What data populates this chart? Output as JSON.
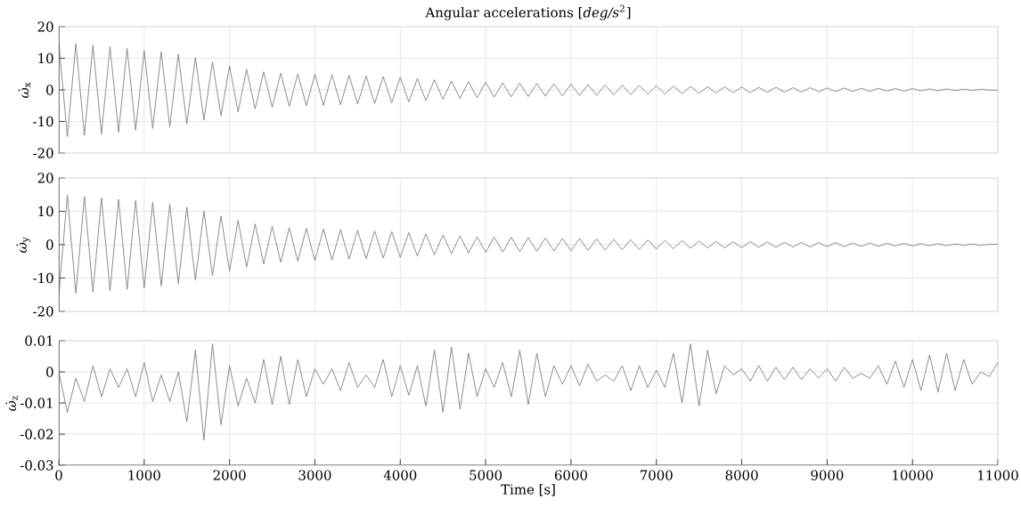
{
  "chart_data": [
    {
      "type": "line",
      "title": "Angular accelerations [*deg/s*$^{2}$]",
      "ylabel": "*ω̇*$_{x}$",
      "tick_labels": "y",
      "grid": true,
      "marker": "none",
      "line_style": "solid",
      "xlim": [
        0,
        11000
      ],
      "xticks": [
        0,
        1000,
        2000,
        3000,
        4000,
        5000,
        6000,
        7000,
        8000,
        9000,
        10000,
        11000
      ],
      "ylim": [
        -20,
        20
      ],
      "yticks": [
        -20,
        -10,
        0,
        10,
        20
      ],
      "series": [
        {
          "color": "#808080",
          "x": [
            0,
            100,
            200,
            300,
            400,
            500,
            600,
            700,
            800,
            900,
            1000,
            1100,
            1200,
            1300,
            1400,
            1500,
            1600,
            1700,
            1800,
            1900,
            2000,
            2100,
            2200,
            2300,
            2400,
            2500,
            2600,
            2700,
            2800,
            2900,
            3000,
            3100,
            3200,
            3300,
            3400,
            3500,
            3600,
            3700,
            3800,
            3900,
            4000,
            4100,
            4200,
            4300,
            4400,
            4500,
            4600,
            4700,
            4800,
            4900,
            5000,
            5100,
            5200,
            5300,
            5400,
            5500,
            5600,
            5700,
            5800,
            5900,
            6000,
            6100,
            6200,
            6300,
            6400,
            6500,
            6600,
            6700,
            6800,
            6900,
            7000,
            7100,
            7200,
            7300,
            7400,
            7500,
            7600,
            7700,
            7800,
            7900,
            8000,
            8100,
            8200,
            8300,
            8400,
            8500,
            8600,
            8700,
            8800,
            8900,
            9000,
            9100,
            9200,
            9300,
            9400,
            9500,
            9600,
            9700,
            9800,
            9900,
            10000,
            10100,
            10200,
            10300,
            10400,
            10500,
            10600,
            10700,
            10800,
            10900,
            11000
          ],
          "values": [
            15,
            -14.8,
            14.6,
            -14.4,
            14.2,
            -14,
            13.7,
            -13.4,
            13.1,
            -12.8,
            12.5,
            -12.2,
            12,
            -11.7,
            11.3,
            -10.8,
            10.2,
            -9.5,
            8.8,
            -8.2,
            7.6,
            -7,
            6.5,
            -6,
            5.7,
            -5.5,
            5.3,
            -5.2,
            5.1,
            -5,
            5,
            -4.9,
            4.8,
            -4.7,
            4.6,
            -4.5,
            4.4,
            -4.3,
            4.2,
            -4.1,
            4,
            -3.8,
            3.6,
            -3.4,
            3.2,
            -3,
            2.8,
            -2.7,
            2.6,
            -2.5,
            2.4,
            -2.3,
            2.2,
            -2.2,
            2.1,
            -2.1,
            2,
            -2,
            1.9,
            -1.9,
            1.8,
            -1.8,
            1.7,
            -1.7,
            1.6,
            -1.6,
            1.5,
            -1.5,
            1.4,
            -1.4,
            1.3,
            -1.3,
            1.2,
            -1.2,
            1.1,
            -1.1,
            1,
            -1,
            1,
            -0.9,
            0.9,
            -0.9,
            0.8,
            -0.8,
            0.8,
            -0.7,
            0.7,
            -0.7,
            0.7,
            -0.6,
            0.6,
            -0.6,
            0.6,
            -0.5,
            0.5,
            -0.5,
            0.5,
            -0.4,
            0.4,
            -0.4,
            0.4,
            -0.3,
            0.3,
            -0.3,
            0.3,
            -0.2,
            0.2,
            -0.2,
            0.2,
            -0.1,
            -0.1
          ]
        }
      ]
    },
    {
      "type": "line",
      "ylabel": "*ω̇*$_{y}$",
      "tick_labels": "y",
      "grid": true,
      "marker": "none",
      "line_style": "solid",
      "xlim": [
        0,
        11000
      ],
      "xticks": [
        0,
        1000,
        2000,
        3000,
        4000,
        5000,
        6000,
        7000,
        8000,
        9000,
        10000,
        11000
      ],
      "ylim": [
        -20,
        20
      ],
      "yticks": [
        -20,
        -10,
        0,
        10,
        20
      ],
      "series": [
        {
          "color": "#808080",
          "x": [
            0,
            100,
            200,
            300,
            400,
            500,
            600,
            700,
            800,
            900,
            1000,
            1100,
            1200,
            1300,
            1400,
            1500,
            1600,
            1700,
            1800,
            1900,
            2000,
            2100,
            2200,
            2300,
            2400,
            2500,
            2600,
            2700,
            2800,
            2900,
            3000,
            3100,
            3200,
            3300,
            3400,
            3500,
            3600,
            3700,
            3800,
            3900,
            4000,
            4100,
            4200,
            4300,
            4400,
            4500,
            4600,
            4700,
            4800,
            4900,
            5000,
            5100,
            5200,
            5300,
            5400,
            5500,
            5600,
            5700,
            5800,
            5900,
            6000,
            6100,
            6200,
            6300,
            6400,
            6500,
            6600,
            6700,
            6800,
            6900,
            7000,
            7100,
            7200,
            7300,
            7400,
            7500,
            7600,
            7700,
            7800,
            7900,
            8000,
            8100,
            8200,
            8300,
            8400,
            8500,
            8600,
            8700,
            8800,
            8900,
            9000,
            9100,
            9200,
            9300,
            9400,
            9500,
            9600,
            9700,
            9800,
            9900,
            10000,
            10100,
            10200,
            10300,
            10400,
            10500,
            10600,
            10700,
            10800,
            10900,
            11000
          ],
          "values": [
            -15,
            14.8,
            -14.6,
            14.4,
            -14.2,
            14,
            -13.8,
            13.6,
            -13.4,
            13.2,
            -13,
            12.7,
            -12.4,
            12.1,
            -11.7,
            11.2,
            -10.6,
            10,
            -9.3,
            8.6,
            -7.9,
            7.3,
            -6.7,
            6.2,
            -5.8,
            5.5,
            -5.3,
            5.1,
            -5,
            4.9,
            -4.8,
            4.7,
            -4.6,
            4.5,
            -4.4,
            4.3,
            -4.2,
            4.1,
            -4,
            3.9,
            -3.8,
            3.6,
            -3.4,
            3.2,
            -3,
            2.9,
            -2.7,
            2.6,
            -2.5,
            2.4,
            -2.3,
            2.3,
            -2.2,
            2.2,
            -2.1,
            2.1,
            -2,
            2,
            -1.9,
            1.9,
            -1.8,
            1.8,
            -1.7,
            1.7,
            -1.6,
            1.6,
            -1.5,
            1.5,
            -1.4,
            1.4,
            -1.3,
            1.3,
            -1.2,
            1.2,
            -1.1,
            1.1,
            -1,
            1,
            -1,
            0.9,
            -0.9,
            0.9,
            -0.8,
            0.8,
            -0.8,
            0.7,
            -0.7,
            0.7,
            -0.7,
            0.6,
            -0.6,
            0.6,
            -0.6,
            0.5,
            -0.5,
            0.5,
            -0.5,
            0.4,
            -0.4,
            0.4,
            -0.4,
            0.3,
            -0.3,
            0.3,
            -0.3,
            0.2,
            -0.2,
            0.2,
            -0.2,
            0.1,
            0.1
          ]
        }
      ]
    },
    {
      "type": "line",
      "xlabel": "Time [s]",
      "ylabel": "*ω̇*$_{z}$",
      "grid": true,
      "marker": "none",
      "line_style": "solid",
      "xlim": [
        0,
        11000
      ],
      "xticks": [
        0,
        1000,
        2000,
        3000,
        4000,
        5000,
        6000,
        7000,
        8000,
        9000,
        10000,
        11000
      ],
      "ylim": [
        -0.03,
        0.01
      ],
      "yticks": [
        -0.03,
        -0.02,
        -0.01,
        0,
        0.01
      ],
      "series": [
        {
          "color": "#808080",
          "x": [
            0,
            100,
            200,
            300,
            400,
            500,
            600,
            700,
            800,
            900,
            1000,
            1100,
            1200,
            1300,
            1400,
            1500,
            1600,
            1700,
            1800,
            1900,
            2000,
            2100,
            2200,
            2300,
            2400,
            2500,
            2600,
            2700,
            2800,
            2900,
            3000,
            3100,
            3200,
            3300,
            3400,
            3500,
            3600,
            3700,
            3800,
            3900,
            4000,
            4100,
            4200,
            4300,
            4400,
            4500,
            4600,
            4700,
            4800,
            4900,
            5000,
            5100,
            5200,
            5300,
            5400,
            5500,
            5600,
            5700,
            5800,
            5900,
            6000,
            6100,
            6200,
            6300,
            6400,
            6500,
            6600,
            6700,
            6800,
            6900,
            7000,
            7100,
            7200,
            7300,
            7400,
            7500,
            7600,
            7700,
            7800,
            7900,
            8000,
            8100,
            8200,
            8300,
            8400,
            8500,
            8600,
            8700,
            8800,
            8900,
            9000,
            9100,
            9200,
            9300,
            9400,
            9500,
            9600,
            9700,
            9800,
            9900,
            10000,
            10100,
            10200,
            10300,
            10400,
            10500,
            10600,
            10700,
            10800,
            10900,
            11000
          ],
          "values": [
            0,
            -0.013,
            -0.002,
            -0.0095,
            0.002,
            -0.008,
            0.001,
            -0.005,
            0.001,
            -0.008,
            0.003,
            -0.0095,
            -0.001,
            -0.0095,
            0,
            -0.016,
            0.007,
            -0.022,
            0.009,
            -0.017,
            0.002,
            -0.011,
            -0.002,
            -0.01,
            0.004,
            -0.0105,
            0.005,
            -0.0105,
            0.004,
            -0.008,
            0.001,
            -0.004,
            0.001,
            -0.006,
            0.003,
            -0.005,
            -0.001,
            -0.005,
            0.004,
            -0.008,
            0.002,
            -0.0075,
            0.002,
            -0.011,
            0.007,
            -0.013,
            0.008,
            -0.012,
            0.006,
            -0.008,
            0.001,
            -0.005,
            0.003,
            -0.008,
            0.007,
            -0.0105,
            0.006,
            -0.008,
            0.002,
            -0.004,
            0.002,
            -0.0045,
            0.0025,
            -0.003,
            -0.001,
            -0.003,
            0.002,
            -0.006,
            0.002,
            -0.005,
            0.0005,
            -0.005,
            0.006,
            -0.01,
            0.009,
            -0.011,
            0.007,
            -0.007,
            0.002,
            -0.001,
            0.001,
            -0.003,
            0.002,
            -0.003,
            0.0015,
            -0.0025,
            0.0015,
            -0.0025,
            0.001,
            -0.002,
            0.001,
            -0.003,
            0.0015,
            -0.002,
            -0.0005,
            -0.002,
            0.002,
            -0.004,
            0.0035,
            -0.005,
            0.004,
            -0.006,
            0.0055,
            -0.0065,
            0.006,
            -0.006,
            0.004,
            -0.004,
            0,
            -0.0015,
            0.003
          ]
        }
      ]
    }
  ]
}
